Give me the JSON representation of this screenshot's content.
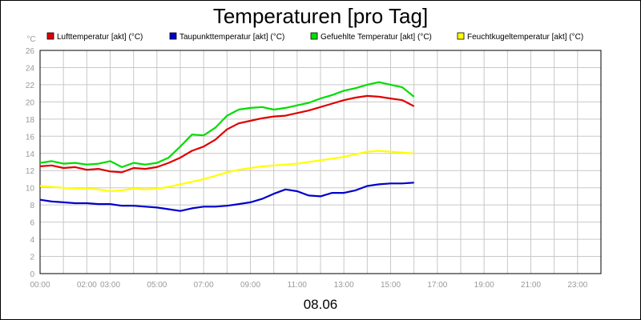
{
  "chart_data": {
    "type": "line",
    "title": "Temperaturen [pro Tag]",
    "xlabel": "08.06",
    "ylabel": "°C",
    "ylim": [
      0,
      26
    ],
    "yticks": [
      0,
      2,
      4,
      6,
      8,
      10,
      12,
      14,
      16,
      18,
      20,
      22,
      24,
      26
    ],
    "xlim": [
      0,
      24
    ],
    "xticks": [
      {
        "x": 0,
        "label": "00:00"
      },
      {
        "x": 2,
        "label": "02:00"
      },
      {
        "x": 3,
        "label": "03:00"
      },
      {
        "x": 5,
        "label": "05:00"
      },
      {
        "x": 7,
        "label": "07:00"
      },
      {
        "x": 9,
        "label": "09:00"
      },
      {
        "x": 11,
        "label": "11:00"
      },
      {
        "x": 13,
        "label": "13:00"
      },
      {
        "x": 15,
        "label": "15:00"
      },
      {
        "x": 17,
        "label": "17:00"
      },
      {
        "x": 19,
        "label": "19:00"
      },
      {
        "x": 21,
        "label": "21:00"
      },
      {
        "x": 23,
        "label": "23:00"
      }
    ],
    "grid": true,
    "legend": "top",
    "x": [
      0,
      0.5,
      1,
      1.5,
      2,
      2.5,
      3,
      3.5,
      4,
      4.5,
      5,
      5.5,
      6,
      6.5,
      7,
      7.5,
      8,
      8.5,
      9,
      9.5,
      10,
      10.5,
      11,
      11.5,
      12,
      12.5,
      13,
      13.5,
      14,
      14.5,
      15,
      15.5,
      16
    ],
    "series": [
      {
        "name": "Lufttemperatur [akt] (°C)",
        "color": "#e00000",
        "values": [
          12.5,
          12.6,
          12.3,
          12.4,
          12.1,
          12.2,
          11.9,
          11.8,
          12.3,
          12.2,
          12.4,
          12.9,
          13.5,
          14.3,
          14.8,
          15.6,
          16.8,
          17.5,
          17.8,
          18.1,
          18.3,
          18.4,
          18.7,
          19.0,
          19.4,
          19.8,
          20.2,
          20.5,
          20.7,
          20.6,
          20.4,
          20.2,
          19.5
        ]
      },
      {
        "name": "Taupunkttemperatur [akt] (°C)",
        "color": "#0000cc",
        "values": [
          8.6,
          8.4,
          8.3,
          8.2,
          8.2,
          8.1,
          8.1,
          7.9,
          7.9,
          7.8,
          7.7,
          7.5,
          7.3,
          7.6,
          7.8,
          7.8,
          7.9,
          8.1,
          8.3,
          8.7,
          9.3,
          9.8,
          9.6,
          9.1,
          9.0,
          9.4,
          9.4,
          9.7,
          10.2,
          10.4,
          10.5,
          10.5,
          10.6
        ]
      },
      {
        "name": "Gefuehlte Temperatur [akt] (°C)",
        "color": "#00dd00",
        "values": [
          12.9,
          13.1,
          12.8,
          12.9,
          12.7,
          12.8,
          13.1,
          12.4,
          12.9,
          12.7,
          12.9,
          13.5,
          14.8,
          16.2,
          16.1,
          17.0,
          18.4,
          19.1,
          19.3,
          19.4,
          19.1,
          19.3,
          19.6,
          19.9,
          20.4,
          20.8,
          21.3,
          21.6,
          22.0,
          22.3,
          22.0,
          21.7,
          20.6
        ]
      },
      {
        "name": "Feuchtkugeltemperatur [akt] (°C)",
        "color": "#ffff00",
        "values": [
          10.2,
          10.1,
          10.0,
          9.9,
          9.9,
          9.8,
          9.6,
          9.7,
          9.9,
          9.8,
          9.9,
          10.1,
          10.4,
          10.7,
          11.0,
          11.4,
          11.8,
          12.1,
          12.3,
          12.5,
          12.6,
          12.7,
          12.8,
          13.0,
          13.2,
          13.4,
          13.6,
          13.9,
          14.2,
          14.3,
          14.2,
          14.1,
          14.0
        ]
      }
    ]
  }
}
